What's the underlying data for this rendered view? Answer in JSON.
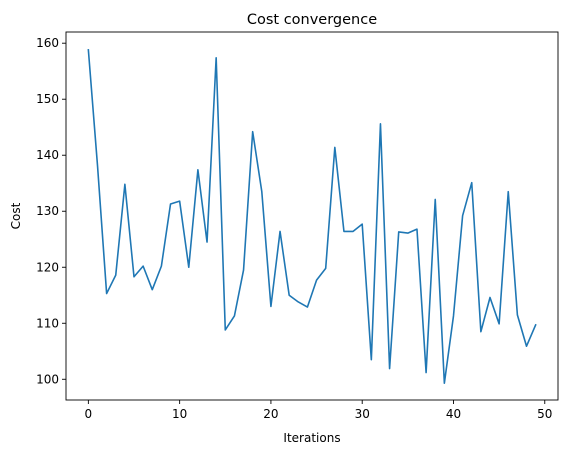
{
  "chart_data": {
    "type": "line",
    "title": "Cost convergence",
    "xlabel": "Iterations",
    "ylabel": "Cost",
    "xlim": [
      -2.45,
      51.45
    ],
    "ylim": [
      96.3,
      162.0
    ],
    "xticks": [
      0,
      10,
      20,
      30,
      40,
      50
    ],
    "yticks": [
      100,
      110,
      120,
      130,
      140,
      150,
      160
    ],
    "grid": false,
    "series": [
      {
        "color": "#1f77b4",
        "x": [
          0,
          1,
          2,
          3,
          4,
          5,
          6,
          7,
          8,
          9,
          10,
          11,
          12,
          13,
          14,
          15,
          16,
          17,
          18,
          19,
          20,
          21,
          22,
          23,
          24,
          25,
          26,
          27,
          28,
          29,
          30,
          31,
          32,
          33,
          34,
          35,
          36,
          37,
          38,
          39,
          40,
          41,
          42,
          43,
          44,
          45,
          46,
          47,
          48,
          49
        ],
        "y": [
          158.8,
          138.2,
          115.3,
          118.6,
          134.8,
          118.3,
          120.2,
          116.0,
          120.2,
          131.3,
          131.8,
          120.0,
          137.4,
          124.5,
          157.4,
          108.8,
          111.3,
          119.5,
          144.2,
          133.5,
          113.0,
          126.4,
          115.0,
          113.8,
          112.9,
          117.7,
          119.8,
          141.4,
          126.4,
          126.4,
          127.7,
          103.5,
          145.6,
          101.9,
          126.3,
          126.1,
          126.8,
          101.2,
          132.1,
          99.3,
          111.3,
          129.2,
          135.1,
          108.5,
          114.6,
          109.9,
          133.5,
          111.5,
          105.9,
          109.7
        ]
      }
    ]
  }
}
